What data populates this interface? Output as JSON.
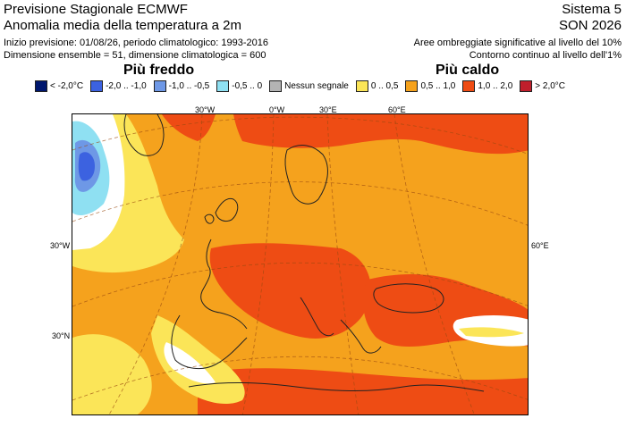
{
  "header": {
    "title": "Previsione Stagionale ECMWF",
    "subtitle": "Anomalia media della temperatura a 2m",
    "info_line1": "Inizio previsione: 01/08/26, periodo climatologico: 1993-2016",
    "info_line2": "Dimensione ensemble = 51, dimensione climatologica = 600",
    "system": "Sistema 5",
    "season": "SON 2026",
    "note_line1": "Aree ombreggiate significative al livello del 10%",
    "note_line2": "Contorno continuo al livello dell'1%"
  },
  "legend": {
    "colder_label": "Più freddo",
    "warmer_label": "Più caldo",
    "items": [
      {
        "label": "< -2,0°C",
        "color": "#00176e"
      },
      {
        "label": "-2,0 .. -1,0",
        "color": "#3c62e0"
      },
      {
        "label": "-1,0 .. -0,5",
        "color": "#6e98e6"
      },
      {
        "label": "-0,5 .. 0",
        "color": "#8fe0f2"
      },
      {
        "label": "Nessun segnale",
        "color": "#b4b4b4"
      },
      {
        "label": "0 .. 0,5",
        "color": "#fbe558"
      },
      {
        "label": "0,5 .. 1,0",
        "color": "#f5a21d"
      },
      {
        "label": "1,0 .. 2,0",
        "color": "#ee4c14"
      },
      {
        "label": "> 2,0°C",
        "color": "#c01f2c"
      }
    ]
  },
  "map": {
    "labels": {
      "lon_30w_top": "30°W",
      "lon_0_top": "0°W",
      "lon_30e_top": "30°E",
      "lon_60e_top": "60°E",
      "lon_30w_left": "30°W",
      "lon_60e_right": "60°E",
      "lat_30n_left": "30°N"
    }
  }
}
